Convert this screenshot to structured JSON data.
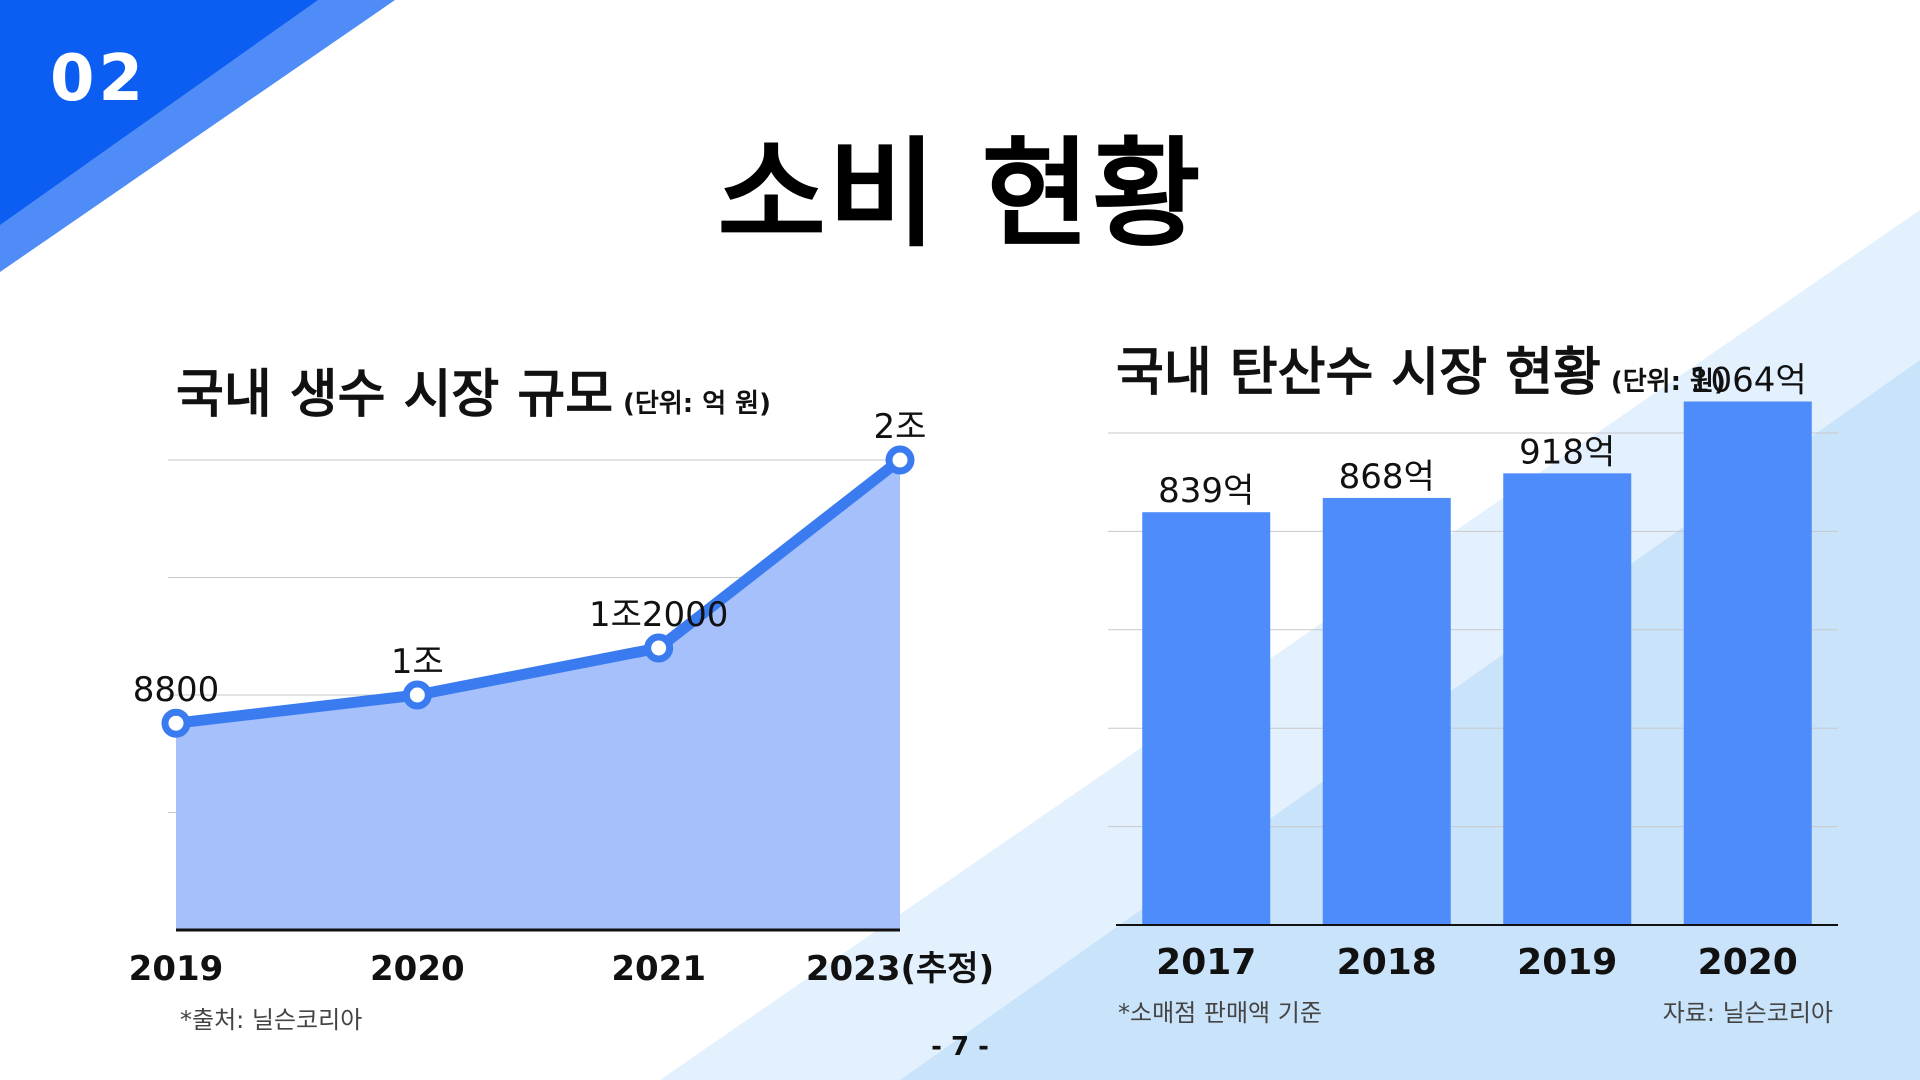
{
  "section_number": "02",
  "page_title": "소비 현황",
  "page_number": "- 7 -",
  "chart_data": [
    {
      "type": "area",
      "title": "국내 생수 시장 규모",
      "unit": "(단위: 억 원)",
      "categories": [
        "2019",
        "2020",
        "2021",
        "2023(추정)"
      ],
      "values": [
        8800,
        10000,
        12000,
        20000
      ],
      "data_labels": [
        "8800",
        "1조",
        "1조2000",
        "2조"
      ],
      "ylim": [
        0,
        20000
      ],
      "grid": true,
      "line_color": "#3a7bf0",
      "fill_color": "#a6c0fb",
      "note": "*출처: 닐슨코리아"
    },
    {
      "type": "bar",
      "title": "국내 탄산수 시장 현황",
      "unit": "(단위: 원)",
      "categories": [
        "2017",
        "2018",
        "2019",
        "2020"
      ],
      "values": [
        839,
        868,
        918,
        1064
      ],
      "data_labels": [
        "839억",
        "868억",
        "918억",
        "1064억"
      ],
      "ylim": [
        0,
        1000
      ],
      "grid": true,
      "bar_color": "#4e8bfb",
      "note": "*소매점 판매액 기준",
      "source": "자료: 닐슨코리아"
    }
  ]
}
